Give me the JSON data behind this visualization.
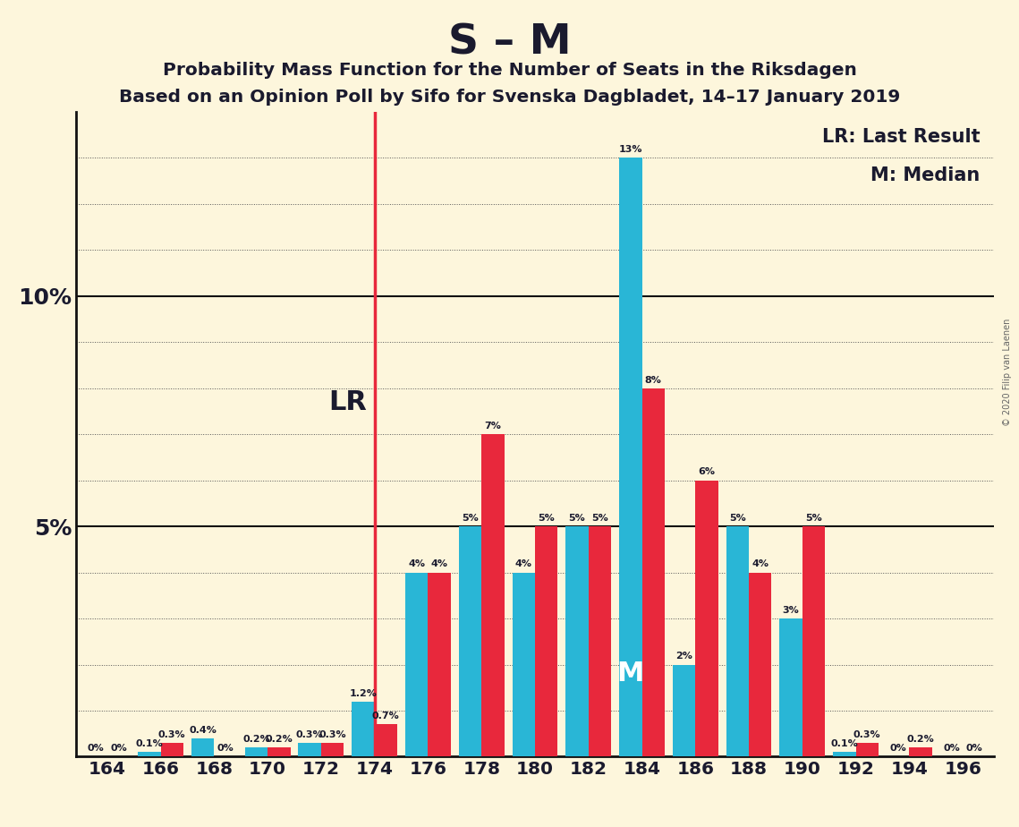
{
  "title": "S – M",
  "subtitle1": "Probability Mass Function for the Number of Seats in the Riksdagen",
  "subtitle2": "Based on an Opinion Poll by Sifo for Svenska Dagbladet, 14–17 January 2019",
  "copyright": "© 2020 Filip van Laenen",
  "legend_lr": "LR: Last Result",
  "legend_m": "M: Median",
  "lr_label": "LR",
  "median_label": "M",
  "background_color": "#fdf6dc",
  "bar_color_cyan": "#29b6d6",
  "bar_color_red": "#e8283c",
  "lr_line_color": "#e8283c",
  "seats": [
    164,
    166,
    168,
    170,
    172,
    174,
    176,
    178,
    180,
    182,
    184,
    186,
    188,
    190,
    192,
    194,
    196
  ],
  "cyan_values": [
    0.0,
    0.1,
    0.4,
    0.2,
    0.3,
    1.2,
    4.0,
    5.0,
    4.0,
    5.0,
    13.0,
    2.0,
    5.0,
    3.0,
    0.1,
    0.0,
    0.0
  ],
  "red_values": [
    0.0,
    0.3,
    0.0,
    0.2,
    0.3,
    0.7,
    4.0,
    7.0,
    5.0,
    5.0,
    8.0,
    6.0,
    4.0,
    5.0,
    0.3,
    0.2,
    0.0
  ],
  "lr_seat": 174,
  "median_seat": 184,
  "ylim_max": 14.0,
  "figsize": [
    11.39,
    9.24
  ],
  "dpi": 100,
  "text_color": "#1a1a2e",
  "grid_color": "#555555",
  "spine_color": "#111111"
}
